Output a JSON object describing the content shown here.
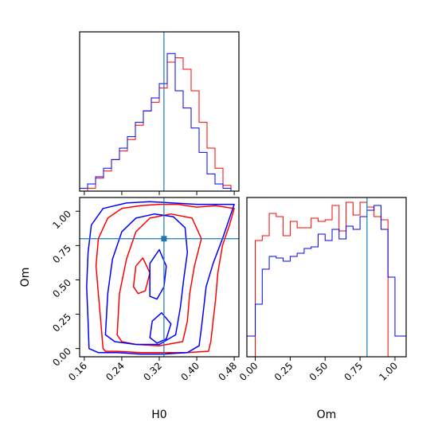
{
  "chart_data": {
    "type": "corner",
    "colors": {
      "red": "#ff0000",
      "blue": "#0000ff",
      "truth": "#1f77b4"
    },
    "truth": {
      "H0": 0.33,
      "Om": 0.8
    },
    "hist_H0": {
      "x_range": [
        0.15,
        0.49
      ],
      "bin_edges": [
        0.15,
        0.167,
        0.184,
        0.201,
        0.218,
        0.235,
        0.252,
        0.269,
        0.286,
        0.303,
        0.32,
        0.337,
        0.354,
        0.371,
        0.388,
        0.405,
        0.422,
        0.439,
        0.456,
        0.473,
        0.49
      ],
      "red": [
        0.0,
        0.02,
        0.09,
        0.14,
        0.22,
        0.28,
        0.36,
        0.46,
        0.56,
        0.62,
        0.72,
        0.9,
        0.93,
        0.85,
        0.7,
        0.48,
        0.3,
        0.16,
        0.04,
        0.0
      ],
      "blue": [
        0.02,
        0.05,
        0.1,
        0.16,
        0.22,
        0.3,
        0.38,
        0.48,
        0.56,
        0.65,
        0.75,
        0.96,
        0.7,
        0.58,
        0.44,
        0.27,
        0.12,
        0.05,
        0.02,
        0.0
      ]
    },
    "hist_Om": {
      "x_range": [
        -0.06,
        1.08
      ],
      "bin_edges": [
        -0.06,
        0.0,
        0.05,
        0.1,
        0.15,
        0.2,
        0.25,
        0.3,
        0.35,
        0.4,
        0.45,
        0.5,
        0.55,
        0.6,
        0.65,
        0.7,
        0.75,
        0.8,
        0.85,
        0.9,
        0.95,
        1.0,
        1.08
      ],
      "red": [
        0.0,
        0.73,
        0.76,
        0.9,
        0.88,
        0.76,
        0.85,
        0.81,
        0.81,
        0.87,
        0.85,
        0.86,
        0.95,
        0.79,
        0.97,
        0.89,
        0.97,
        0.94,
        0.88,
        0.86,
        0.0,
        0.0
      ],
      "blue": [
        0.13,
        0.33,
        0.55,
        0.63,
        0.62,
        0.6,
        0.63,
        0.65,
        0.68,
        0.69,
        0.77,
        0.73,
        0.8,
        0.74,
        0.82,
        0.8,
        0.88,
        0.92,
        0.95,
        0.8,
        0.5,
        0.13
      ]
    },
    "scatter": {
      "x_range": [
        0.15,
        0.49
      ],
      "y_range": [
        -0.06,
        1.1
      ],
      "contours": {
        "red": [
          [
            [
              0.2,
              0.0
            ],
            [
              0.195,
              0.2
            ],
            [
              0.19,
              0.4
            ],
            [
              0.185,
              0.6
            ],
            [
              0.19,
              0.8
            ],
            [
              0.21,
              0.95
            ],
            [
              0.24,
              1.02
            ],
            [
              0.28,
              1.04
            ],
            [
              0.32,
              1.05
            ],
            [
              0.36,
              1.05
            ],
            [
              0.4,
              1.03
            ],
            [
              0.44,
              1.04
            ],
            [
              0.48,
              1.02
            ],
            [
              0.47,
              0.9
            ],
            [
              0.455,
              0.75
            ],
            [
              0.445,
              0.55
            ],
            [
              0.44,
              0.35
            ],
            [
              0.435,
              0.2
            ],
            [
              0.43,
              0.05
            ],
            [
              0.425,
              -0.02
            ],
            [
              0.38,
              -0.03
            ],
            [
              0.33,
              -0.03
            ],
            [
              0.28,
              -0.03
            ],
            [
              0.23,
              -0.02
            ],
            [
              0.205,
              -0.02
            ]
          ],
          [
            [
              0.23,
              0.1
            ],
            [
              0.235,
              0.4
            ],
            [
              0.25,
              0.65
            ],
            [
              0.27,
              0.85
            ],
            [
              0.3,
              0.95
            ],
            [
              0.345,
              0.98
            ],
            [
              0.39,
              0.95
            ],
            [
              0.41,
              0.8
            ],
            [
              0.395,
              0.6
            ],
            [
              0.385,
              0.4
            ],
            [
              0.38,
              0.2
            ],
            [
              0.37,
              0.05
            ],
            [
              0.32,
              0.02
            ],
            [
              0.27,
              0.03
            ],
            [
              0.24,
              0.05
            ]
          ],
          [
            [
              0.265,
              0.45
            ],
            [
              0.27,
              0.6
            ],
            [
              0.285,
              0.66
            ],
            [
              0.3,
              0.55
            ],
            [
              0.29,
              0.42
            ],
            [
              0.275,
              0.4
            ]
          ]
        ],
        "blue": [
          [
            [
              0.17,
              0.0
            ],
            [
              0.168,
              0.2
            ],
            [
              0.165,
              0.45
            ],
            [
              0.168,
              0.7
            ],
            [
              0.175,
              0.9
            ],
            [
              0.2,
              1.02
            ],
            [
              0.25,
              1.06
            ],
            [
              0.3,
              1.07
            ],
            [
              0.35,
              1.06
            ],
            [
              0.4,
              1.05
            ],
            [
              0.44,
              1.05
            ],
            [
              0.48,
              1.05
            ],
            [
              0.47,
              0.95
            ],
            [
              0.455,
              0.8
            ],
            [
              0.435,
              0.62
            ],
            [
              0.42,
              0.45
            ],
            [
              0.415,
              0.3
            ],
            [
              0.41,
              0.15
            ],
            [
              0.405,
              0.02
            ],
            [
              0.38,
              -0.03
            ],
            [
              0.33,
              -0.04
            ],
            [
              0.28,
              -0.04
            ],
            [
              0.23,
              -0.03
            ],
            [
              0.19,
              -0.03
            ]
          ],
          [
            [
              0.205,
              0.1
            ],
            [
              0.21,
              0.4
            ],
            [
              0.22,
              0.65
            ],
            [
              0.24,
              0.85
            ],
            [
              0.27,
              0.95
            ],
            [
              0.31,
              0.98
            ],
            [
              0.35,
              0.96
            ],
            [
              0.375,
              0.88
            ],
            [
              0.38,
              0.7
            ],
            [
              0.372,
              0.5
            ],
            [
              0.365,
              0.3
            ],
            [
              0.355,
              0.1
            ],
            [
              0.32,
              0.03
            ],
            [
              0.27,
              0.03
            ],
            [
              0.225,
              0.05
            ]
          ],
          [
            [
              0.3,
              0.38
            ],
            [
              0.3,
              0.62
            ],
            [
              0.32,
              0.72
            ],
            [
              0.335,
              0.6
            ],
            [
              0.33,
              0.45
            ],
            [
              0.315,
              0.36
            ]
          ],
          [
            [
              0.3,
              0.08
            ],
            [
              0.305,
              0.2
            ],
            [
              0.325,
              0.26
            ],
            [
              0.345,
              0.18
            ],
            [
              0.335,
              0.07
            ],
            [
              0.315,
              0.04
            ]
          ]
        ]
      }
    },
    "axis_labels": {
      "H0": "H0",
      "Om": "Om"
    },
    "ticks_H0": [
      0.16,
      0.24,
      0.32,
      0.4,
      0.48
    ],
    "tick_labels_H0": [
      "0.16",
      "0.24",
      "0.32",
      "0.40",
      "0.48"
    ],
    "ticks_Om": [
      0.0,
      0.25,
      0.5,
      0.75,
      1.0
    ],
    "tick_labels_Om": [
      "0.00",
      "0.25",
      "0.50",
      "0.75",
      "1.00"
    ]
  }
}
